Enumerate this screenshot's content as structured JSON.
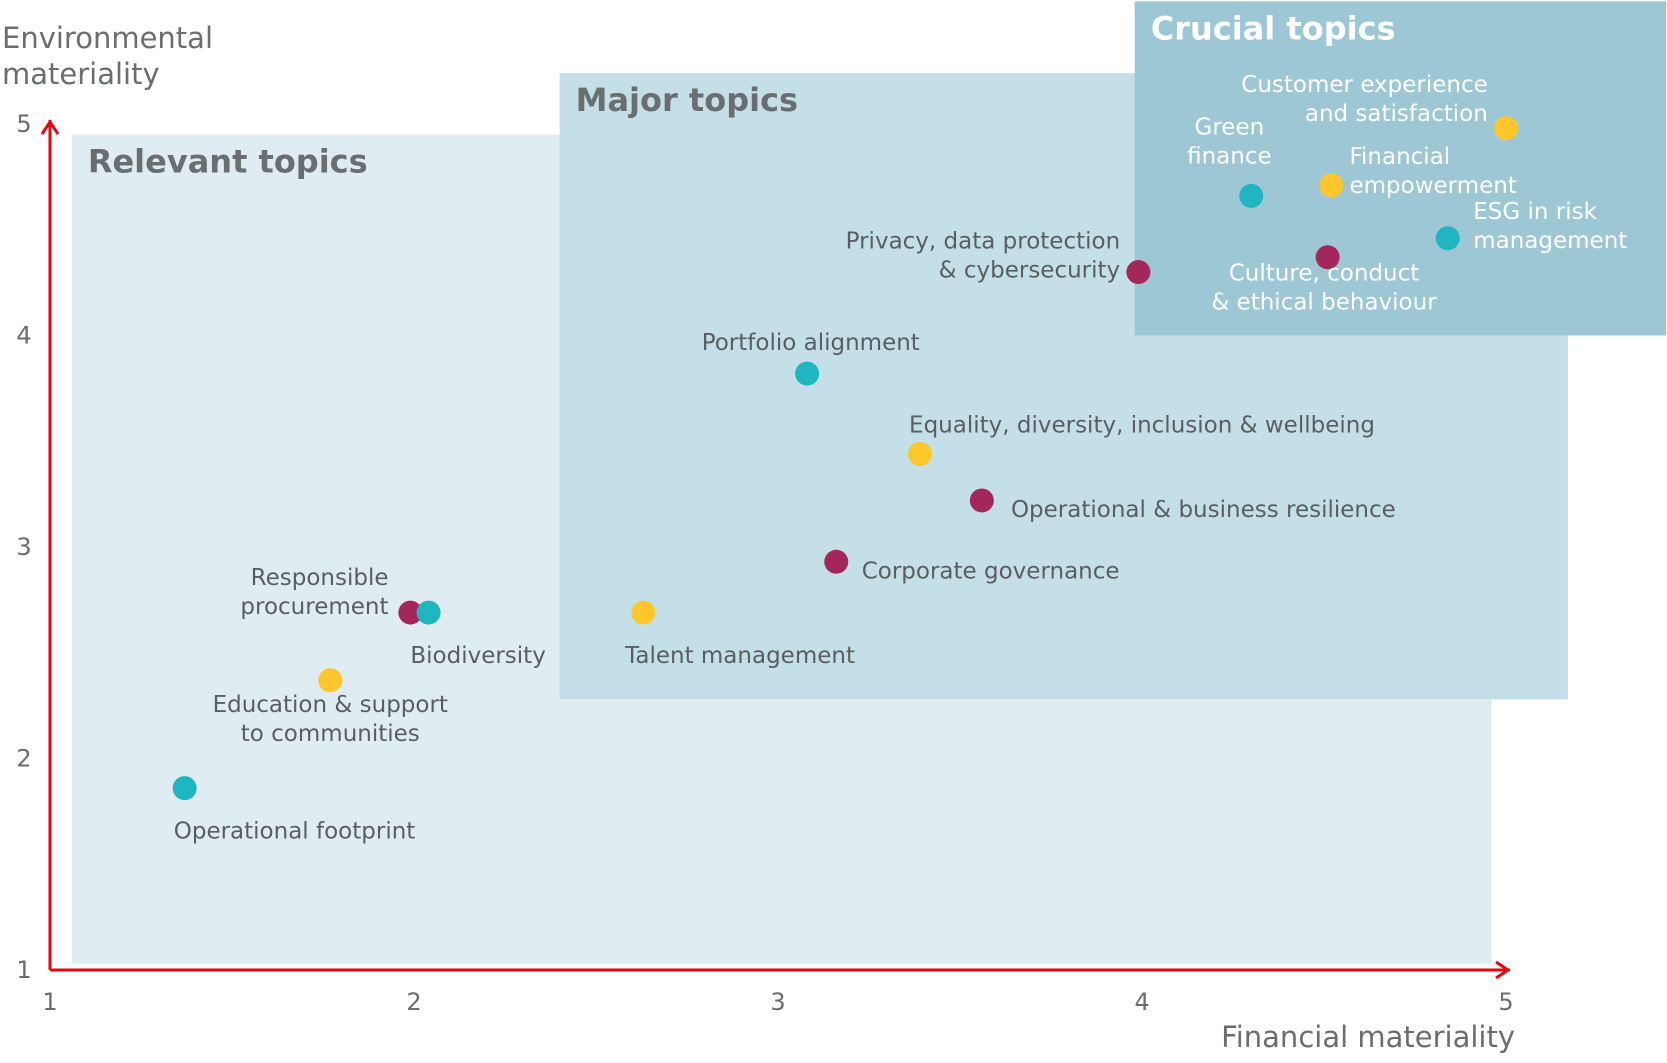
{
  "chart_data": {
    "type": "scatter",
    "title": "",
    "xlabel": "Financial materiality",
    "ylabel_lines": [
      "Environmental",
      "materiality"
    ],
    "xlim": [
      1,
      5
    ],
    "ylim": [
      1,
      5
    ],
    "xticks": [
      1,
      2,
      3,
      4,
      5
    ],
    "yticks": [
      1,
      2,
      3,
      4,
      5
    ],
    "grid": false,
    "colors": {
      "axis": "#e30613",
      "teal": "#1fb5c1",
      "yellow": "#ffc72c",
      "plum": "#a3275a",
      "relevant_region": "#dfedf2",
      "major_region": "#c4dfe7",
      "crucial_region": "#9ec7d6",
      "dark_text": "#6b6e71",
      "light_text": "#ffffff"
    },
    "regions": [
      {
        "name": "Relevant topics",
        "x": [
          1.06,
          4.96
        ],
        "y": [
          1.03,
          4.95
        ],
        "color_key": "relevant_region",
        "text_key": "dark_text"
      },
      {
        "name": "Major topics",
        "x": [
          2.4,
          5.17
        ],
        "y": [
          2.28,
          5.24
        ],
        "color_key": "major_region",
        "text_key": "dark_text"
      },
      {
        "name": "Crucial topics",
        "x": [
          3.98,
          5.44
        ],
        "y": [
          4.0,
          5.58
        ],
        "color_key": "crucial_region",
        "text_key": "light_text"
      }
    ],
    "points": [
      {
        "label": [
          "Customer experience",
          "and satisfaction"
        ],
        "x": 5.0,
        "y": 4.98,
        "color_key": "yellow",
        "anchor": "end",
        "label_dx": -0.05,
        "label_dy": 0.14,
        "inverse": true
      },
      {
        "label": [
          "Green",
          "finance"
        ],
        "x": 4.3,
        "y": 4.66,
        "color_key": "teal",
        "anchor": "middle",
        "label_dx": -0.06,
        "label_dy": 0.26,
        "inverse": true
      },
      {
        "label": [
          "Financial",
          "empowerment"
        ],
        "x": 4.52,
        "y": 4.71,
        "color_key": "yellow",
        "anchor": "start",
        "label_dx": 0.05,
        "label_dy": 0.07,
        "inverse": true
      },
      {
        "label": [
          "ESG in risk",
          "management"
        ],
        "x": 4.84,
        "y": 4.46,
        "color_key": "teal",
        "anchor": "start",
        "label_dx": 0.07,
        "label_dy": 0.06,
        "inverse": true
      },
      {
        "label": [
          "Culture, conduct",
          "& ethical behaviour"
        ],
        "x": 4.51,
        "y": 4.37,
        "color_key": "plum",
        "anchor": "middle",
        "label_dx": -0.01,
        "label_dy": -0.14,
        "inverse": true
      },
      {
        "label": [
          "Privacy, data protection",
          "& cybersecurity"
        ],
        "x": 3.99,
        "y": 4.3,
        "color_key": "plum",
        "anchor": "end",
        "label_dx": -0.05,
        "label_dy": 0.08,
        "inverse": false
      },
      {
        "label": [
          "Portfolio alignment"
        ],
        "x": 3.08,
        "y": 3.82,
        "color_key": "teal",
        "anchor": "middle",
        "label_dx": 0.01,
        "label_dy": 0.15,
        "inverse": false
      },
      {
        "label": [
          "Equality, diversity, inclusion & wellbeing"
        ],
        "x": 3.39,
        "y": 3.44,
        "color_key": "yellow",
        "anchor": "start",
        "label_dx": -0.03,
        "label_dy": 0.14,
        "inverse": false
      },
      {
        "label": [
          "Operational & business resilience"
        ],
        "x": 3.56,
        "y": 3.22,
        "color_key": "plum",
        "anchor": "start",
        "label_dx": 0.08,
        "label_dy": -0.04,
        "inverse": false
      },
      {
        "label": [
          "Corporate governance"
        ],
        "x": 3.16,
        "y": 2.93,
        "color_key": "plum",
        "anchor": "start",
        "label_dx": 0.07,
        "label_dy": -0.04,
        "inverse": false
      },
      {
        "label": [
          "Talent management"
        ],
        "x": 2.63,
        "y": 2.69,
        "color_key": "yellow",
        "anchor": "start",
        "label_dx": -0.05,
        "label_dy": -0.2,
        "inverse": false
      },
      {
        "label": [
          "Responsible",
          "procurement"
        ],
        "x": 1.99,
        "y": 2.69,
        "color_key": "plum",
        "anchor": "end",
        "label_dx": -0.06,
        "label_dy": 0.1,
        "inverse": false
      },
      {
        "label": [
          "Biodiversity"
        ],
        "x": 2.04,
        "y": 2.69,
        "color_key": "teal",
        "anchor": "start",
        "label_dx": -0.05,
        "label_dy": -0.2,
        "inverse": false
      },
      {
        "label": [
          "Education & support",
          "to communities"
        ],
        "x": 1.77,
        "y": 2.37,
        "color_key": "yellow",
        "anchor": "middle",
        "label_dx": 0.0,
        "label_dy": -0.18,
        "inverse": false
      },
      {
        "label": [
          "Operational footprint"
        ],
        "x": 1.37,
        "y": 1.86,
        "color_key": "teal",
        "anchor": "start",
        "label_dx": -0.03,
        "label_dy": -0.2,
        "inverse": false
      }
    ]
  }
}
